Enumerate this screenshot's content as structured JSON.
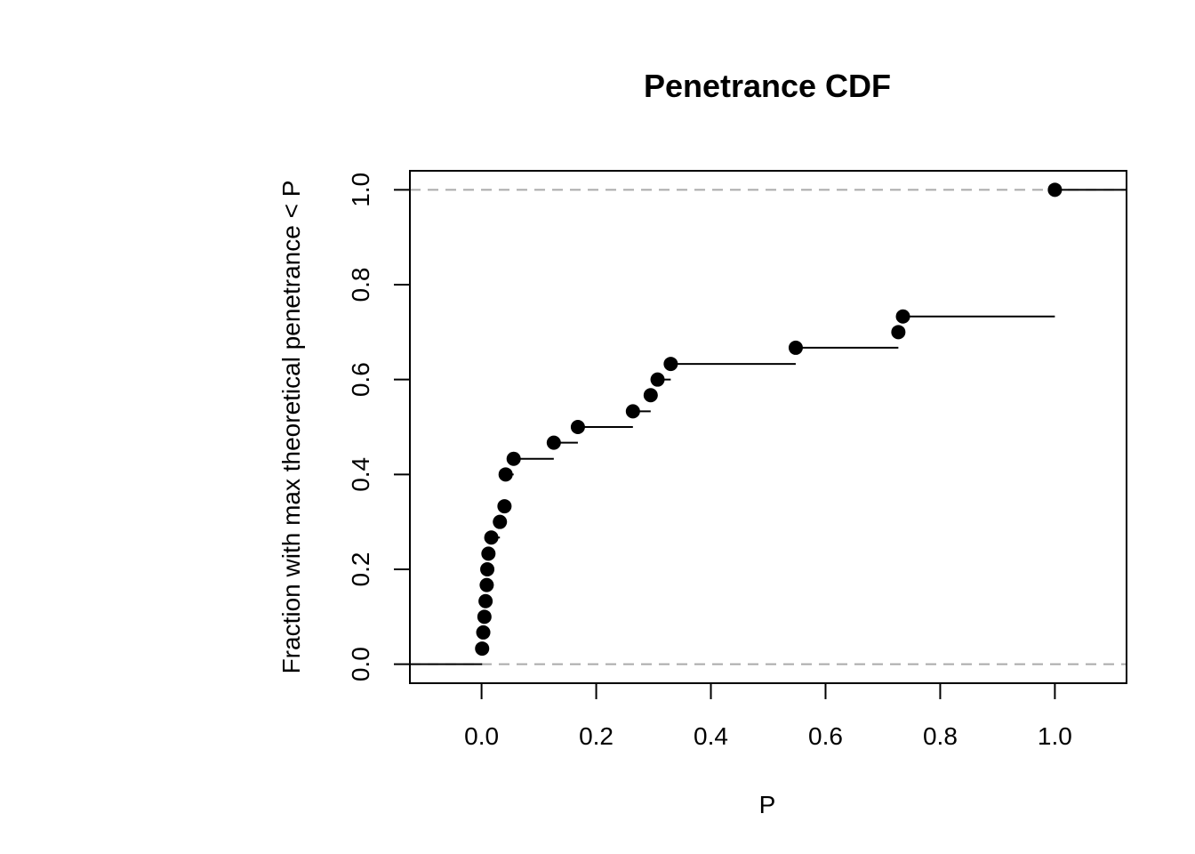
{
  "chart_data": {
    "type": "scatter",
    "subtype": "ecdf-step",
    "title": "Penetrance CDF",
    "xlabel": "P",
    "ylabel": "Fraction with max theoretical penetrance < P",
    "xlim": [
      -0.125,
      1.125
    ],
    "ylim": [
      -0.04,
      1.04
    ],
    "x_ticks": [
      0.0,
      0.2,
      0.4,
      0.6,
      0.8,
      1.0
    ],
    "x_tick_labels": [
      "0.0",
      "0.2",
      "0.4",
      "0.6",
      "0.8",
      "1.0"
    ],
    "y_ticks": [
      0.0,
      0.2,
      0.4,
      0.6,
      0.8,
      1.0
    ],
    "y_tick_labels": [
      "0.0",
      "0.2",
      "0.4",
      "0.6",
      "0.8",
      "1.0"
    ],
    "reference_lines": [
      0.0,
      1.0
    ],
    "grid": false,
    "legend": "none",
    "points": [
      {
        "x": 0.001,
        "y": 0.033
      },
      {
        "x": 0.003,
        "y": 0.067
      },
      {
        "x": 0.005,
        "y": 0.1
      },
      {
        "x": 0.007,
        "y": 0.133
      },
      {
        "x": 0.009,
        "y": 0.167
      },
      {
        "x": 0.01,
        "y": 0.2
      },
      {
        "x": 0.012,
        "y": 0.233
      },
      {
        "x": 0.017,
        "y": 0.267
      },
      {
        "x": 0.032,
        "y": 0.3
      },
      {
        "x": 0.04,
        "y": 0.333
      },
      {
        "x": 0.042,
        "y": 0.4
      },
      {
        "x": 0.056,
        "y": 0.433
      },
      {
        "x": 0.126,
        "y": 0.467
      },
      {
        "x": 0.168,
        "y": 0.5
      },
      {
        "x": 0.264,
        "y": 0.533
      },
      {
        "x": 0.295,
        "y": 0.567
      },
      {
        "x": 0.307,
        "y": 0.6
      },
      {
        "x": 0.33,
        "y": 0.633
      },
      {
        "x": 0.548,
        "y": 0.667
      },
      {
        "x": 0.727,
        "y": 0.7
      },
      {
        "x": 0.735,
        "y": 0.733
      },
      {
        "x": 1.0,
        "y": 1.0
      }
    ],
    "colors": {
      "points": "#000000",
      "steps": "#000000",
      "reference": "#aaaaaa",
      "frame": "#000000"
    }
  }
}
